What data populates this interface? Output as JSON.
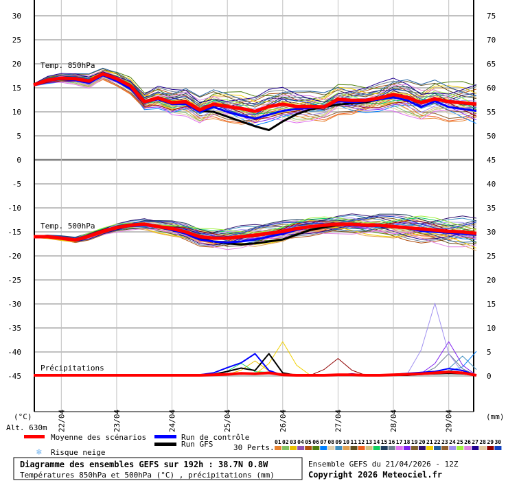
{
  "chart_data": {
    "type": "line",
    "title": "Diagramme des ensembles GEFS sur 192h : 38.7N 0.8W",
    "subtitle": "Températures 850hPa et 500hPa (°C) , précipitations (mm)",
    "run_info": "Ensemble GEFS du 21/04/2026 - 12Z",
    "copyright": "Copyright 2026 Meteociel.fr",
    "left_unit": "(°C)",
    "right_unit": "(mm)",
    "altitude": "Alt. 630m",
    "left_ticks": [
      "30",
      "25",
      "20",
      "15",
      "10",
      "5",
      "0",
      "-5",
      "-10",
      "-15",
      "-20",
      "-25",
      "-30",
      "-35",
      "-40",
      "-45"
    ],
    "right_ticks": [
      "75",
      "70",
      "65",
      "60",
      "55",
      "50",
      "45",
      "40",
      "35",
      "30",
      "25",
      "20",
      "15",
      "10",
      "5",
      "0"
    ],
    "left_range": [
      -45,
      30
    ],
    "right_range": [
      0,
      75
    ],
    "x_start_hour": 12,
    "step_hours": 6,
    "x_labels": [
      "22/04",
      "23/04",
      "24/04",
      "25/04",
      "26/04",
      "27/04",
      "28/04",
      "29/04"
    ],
    "panels": {
      "t850": {
        "label": "Temp. 850hPa"
      },
      "t500": {
        "label": "Temp. 500hPa"
      },
      "precip": {
        "label": "Précipitations"
      }
    },
    "legend": {
      "mean": {
        "label": "Moyenne des scénarios",
        "color": "#ff0000"
      },
      "control": {
        "label": "Run de contrôle",
        "color": "#0000ff"
      },
      "gfs": {
        "label": "Run GFS",
        "color": "#000000"
      },
      "snow": {
        "label": "Risque neige"
      },
      "perts_label": "30 Perts."
    },
    "perturbations": [
      {
        "id": "01",
        "color": "#e8822f"
      },
      {
        "id": "02",
        "color": "#80c060"
      },
      {
        "id": "03",
        "color": "#e8c000"
      },
      {
        "id": "04",
        "color": "#9050b0"
      },
      {
        "id": "05",
        "color": "#b05010"
      },
      {
        "id": "06",
        "color": "#508010"
      },
      {
        "id": "07",
        "color": "#0080ff"
      },
      {
        "id": "08",
        "color": "#e0d0b0"
      },
      {
        "id": "09",
        "color": "#4090c0"
      },
      {
        "id": "10",
        "color": "#e0a050"
      },
      {
        "id": "11",
        "color": "#605020"
      },
      {
        "id": "12",
        "color": "#f06020"
      },
      {
        "id": "13",
        "color": "#d0c080"
      },
      {
        "id": "14",
        "color": "#10d060"
      },
      {
        "id": "15",
        "color": "#204060"
      },
      {
        "id": "16",
        "color": "#708090"
      },
      {
        "id": "17",
        "color": "#e070f0"
      },
      {
        "id": "18",
        "color": "#8020f0"
      },
      {
        "id": "19",
        "color": "#806030"
      },
      {
        "id": "20",
        "color": "#301070"
      },
      {
        "id": "21",
        "color": "#f0d000"
      },
      {
        "id": "22",
        "color": "#2060a0"
      },
      {
        "id": "23",
        "color": "#906030"
      },
      {
        "id": "24",
        "color": "#a090f0"
      },
      {
        "id": "25",
        "color": "#a0f040"
      },
      {
        "id": "26",
        "color": "#e080e0"
      },
      {
        "id": "27",
        "color": "#200090"
      },
      {
        "id": "28",
        "color": "#e0c8a0"
      },
      {
        "id": "29",
        "color": "#900000"
      },
      {
        "id": "30",
        "color": "#1040c0"
      }
    ],
    "t850": {
      "mean": [
        15.6,
        16.6,
        17.0,
        16.9,
        16.4,
        17.9,
        16.9,
        15.4,
        12.1,
        12.9,
        11.9,
        12.1,
        10.4,
        11.6,
        11.1,
        10.7,
        10.1,
        11.1,
        11.6,
        11.1,
        11.1,
        11.0,
        12.6,
        12.4,
        12.4,
        12.9,
        13.6,
        13.0,
        11.9,
        12.7,
        12.1,
        11.9,
        11.6
      ],
      "control": [
        15.6,
        16.4,
        16.8,
        16.6,
        16.0,
        17.6,
        16.4,
        14.8,
        12.0,
        12.6,
        11.6,
        11.6,
        10.0,
        11.0,
        10.0,
        9.2,
        8.6,
        9.4,
        10.2,
        10.6,
        10.8,
        11.2,
        12.2,
        12.0,
        12.2,
        12.6,
        13.0,
        12.4,
        11.0,
        12.2,
        11.0,
        10.6,
        10.2
      ],
      "gfs": [
        15.6,
        16.5,
        17.0,
        16.8,
        16.3,
        17.8,
        16.7,
        15.2,
        12.1,
        12.8,
        11.8,
        11.6,
        10.2,
        10.0,
        9.0,
        8.0,
        7.0,
        6.2,
        8.0,
        9.5,
        10.5,
        11.0,
        11.5,
        11.8,
        12.0,
        12.6,
        13.4,
        13.2,
        12.0,
        12.8,
        12.2,
        11.8,
        11.4
      ],
      "spread": [
        0.3,
        0.8,
        1.0,
        1.2,
        1.5,
        1.2,
        1.5,
        1.8,
        2.0,
        2.5,
        2.8,
        3.0,
        2.8,
        3.0,
        3.2,
        3.5,
        3.5,
        3.6,
        3.6,
        3.4,
        3.2,
        3.0,
        3.2,
        3.2,
        3.0,
        3.2,
        3.6,
        3.8,
        3.8,
        4.0,
        4.2,
        4.4,
        4.6
      ]
    },
    "t500": {
      "mean": [
        -16.0,
        -16.0,
        -16.3,
        -16.7,
        -15.9,
        -14.9,
        -14.1,
        -13.6,
        -13.4,
        -13.9,
        -14.3,
        -15.0,
        -16.0,
        -16.3,
        -16.3,
        -16.0,
        -15.7,
        -15.3,
        -14.9,
        -14.3,
        -13.9,
        -13.6,
        -13.4,
        -13.4,
        -13.6,
        -13.6,
        -13.9,
        -14.1,
        -14.4,
        -14.6,
        -14.9,
        -15.0,
        -15.3
      ],
      "control": [
        -16.0,
        -16.1,
        -16.4,
        -16.8,
        -16.0,
        -15.0,
        -14.2,
        -13.8,
        -13.6,
        -14.0,
        -14.6,
        -15.4,
        -16.6,
        -17.0,
        -17.2,
        -17.0,
        -16.6,
        -16.0,
        -15.4,
        -14.6,
        -14.0,
        -13.6,
        -13.4,
        -13.6,
        -13.8,
        -13.8,
        -14.0,
        -14.2,
        -14.8,
        -15.0,
        -15.2,
        -15.4,
        -15.6
      ],
      "gfs": [
        -16.0,
        -16.0,
        -16.3,
        -16.8,
        -15.9,
        -14.9,
        -14.1,
        -13.7,
        -13.5,
        -14.0,
        -14.5,
        -15.2,
        -16.4,
        -17.0,
        -17.4,
        -17.6,
        -17.4,
        -17.0,
        -16.6,
        -15.6,
        -14.6,
        -14.0,
        -13.6,
        -13.4,
        -13.6,
        -13.8,
        -14.0,
        -14.2,
        -14.6,
        -14.8,
        -15.0,
        -15.2,
        -15.4
      ],
      "spread": [
        0.2,
        0.4,
        0.5,
        0.6,
        0.8,
        0.8,
        1.0,
        1.0,
        1.2,
        1.4,
        1.6,
        1.8,
        2.0,
        2.2,
        2.4,
        2.4,
        2.4,
        2.2,
        2.2,
        2.0,
        2.0,
        2.0,
        2.0,
        2.2,
        2.2,
        2.4,
        2.6,
        2.8,
        3.0,
        3.0,
        3.2,
        3.4,
        3.6
      ]
    },
    "precip": {
      "mean": [
        0,
        0,
        0,
        0,
        0,
        0,
        0,
        0,
        0,
        0,
        0,
        0,
        0,
        0.1,
        0.2,
        0.4,
        0.3,
        0.5,
        0.1,
        0,
        0,
        0,
        0.1,
        0.1,
        0,
        0,
        0.1,
        0.2,
        0.3,
        0.5,
        0.7,
        0.5,
        0
      ],
      "control": [
        0,
        0,
        0,
        0,
        0,
        0,
        0,
        0,
        0,
        0,
        0,
        0,
        0.1,
        0.5,
        1.6,
        2.6,
        4.5,
        1.0,
        0,
        0,
        0,
        0,
        0,
        0.3,
        0,
        0,
        0.2,
        0.4,
        0.6,
        0.8,
        1.4,
        1.0,
        0
      ],
      "gfs": [
        0,
        0,
        0,
        0,
        0,
        0,
        0,
        0,
        0,
        0,
        0,
        0,
        0,
        0.2,
        0.8,
        1.5,
        1.0,
        4.5,
        0.5,
        0,
        0,
        0,
        0,
        0,
        0,
        0,
        0,
        0,
        0.2,
        0.3,
        0.4,
        0.3,
        0
      ],
      "member_peaks": [
        {
          "member": 21,
          "step": 18,
          "value": 7.0
        },
        {
          "member": 24,
          "step": 29,
          "value": 15.0
        },
        {
          "member": 18,
          "step": 30,
          "value": 7.0
        },
        {
          "member": 29,
          "step": 22,
          "value": 3.5
        },
        {
          "member": 3,
          "step": 16,
          "value": 3.0
        },
        {
          "member": 9,
          "step": 31,
          "value": 4.0
        },
        {
          "member": 16,
          "step": 30,
          "value": 4.5
        },
        {
          "member": 14,
          "step": 15,
          "value": 2.5
        },
        {
          "member": 7,
          "step": 32,
          "value": 5.0
        }
      ]
    }
  }
}
